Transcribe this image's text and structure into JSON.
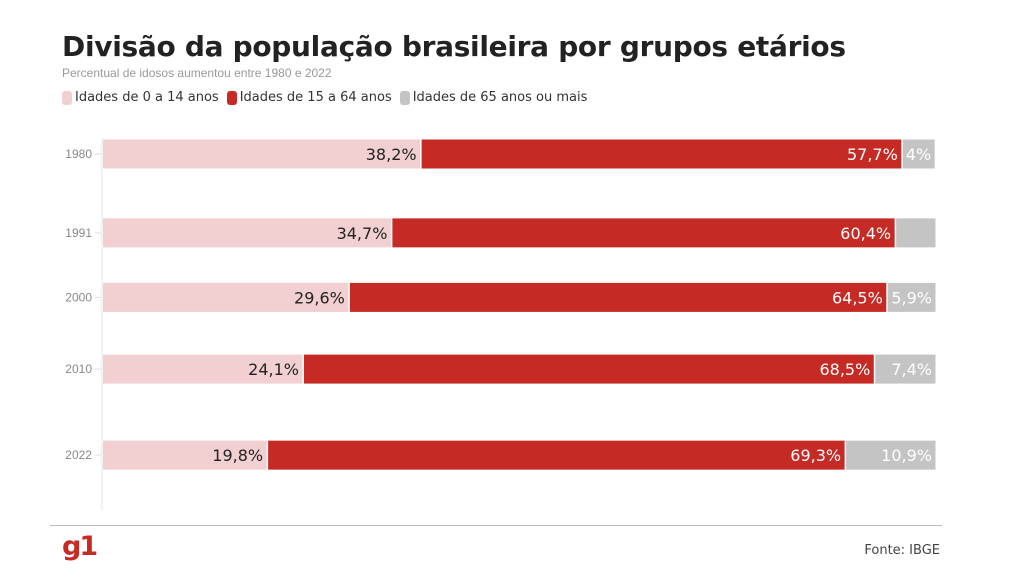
{
  "chart_data": {
    "type": "bar",
    "orientation": "horizontal",
    "stacked": true,
    "title": "Divisão da população brasileira por grupos etários",
    "subtitle": "Percentual de idosos aumentou entre 1980 e 2022",
    "categories": [
      "1980",
      "1991",
      "2000",
      "2010",
      "2022"
    ],
    "series": [
      {
        "name": "Idades de 0 a 14 anos",
        "color": "#f2d0d1",
        "values": [
          38.2,
          34.7,
          29.6,
          24.1,
          19.8
        ],
        "labels": [
          "38,2%",
          "34,7%",
          "29,6%",
          "24,1%",
          "19,8%"
        ]
      },
      {
        "name": "Idades de 15 a 64 anos",
        "color": "#c62a25",
        "values": [
          57.7,
          60.4,
          64.5,
          68.5,
          69.3
        ],
        "labels": [
          "57,7%",
          "60,4%",
          "64,5%",
          "68,5%",
          "69,3%"
        ]
      },
      {
        "name": "Idades de 65 anos ou mais",
        "color": "#c4c4c4",
        "values": [
          4.0,
          4.9,
          5.9,
          7.4,
          10.9
        ],
        "labels": [
          "4%",
          "",
          "5,9%",
          "7,4%",
          "10,9%"
        ]
      }
    ],
    "xlim": [
      0,
      100
    ],
    "legend": "top-left",
    "grid": false
  },
  "footer": {
    "logo": "g1",
    "source": "Fonte: IBGE"
  }
}
